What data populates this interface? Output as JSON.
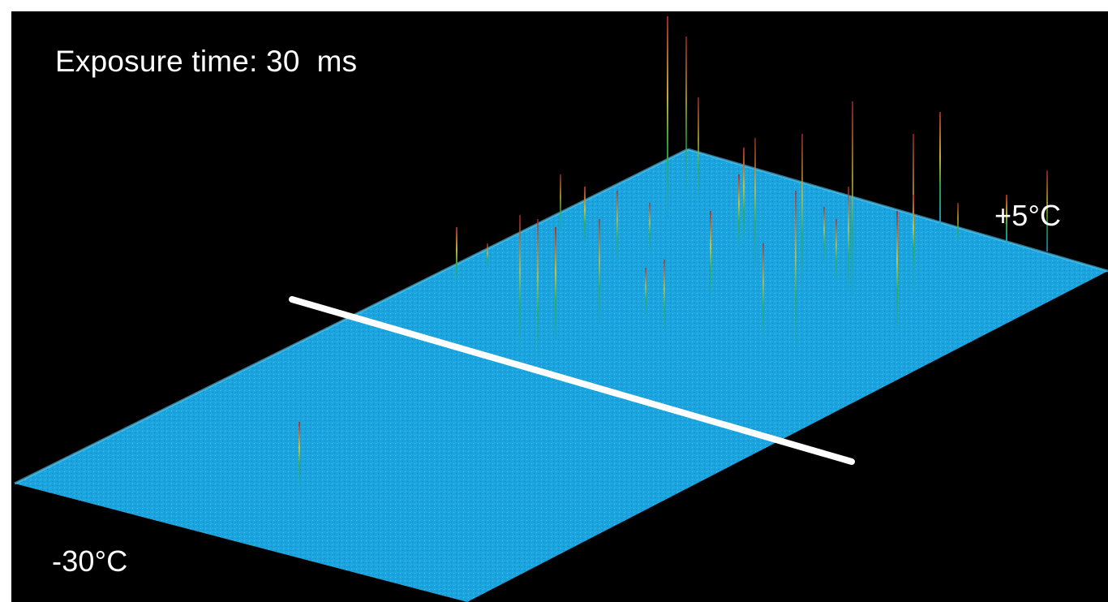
{
  "exposure_text": "Exposure time: 30  ms",
  "hot_label": "+5°C",
  "cold_label": "-30°C",
  "colors": {
    "background": "#000000",
    "surface": "#1aa3dc",
    "surface_light": "#3dbde8",
    "spike_red": "#b0282c",
    "spike_green": "#2fae4a",
    "spike_yellow": "#d7c52c",
    "divider_line": "#ffffff",
    "text": "#ffffff"
  }
}
